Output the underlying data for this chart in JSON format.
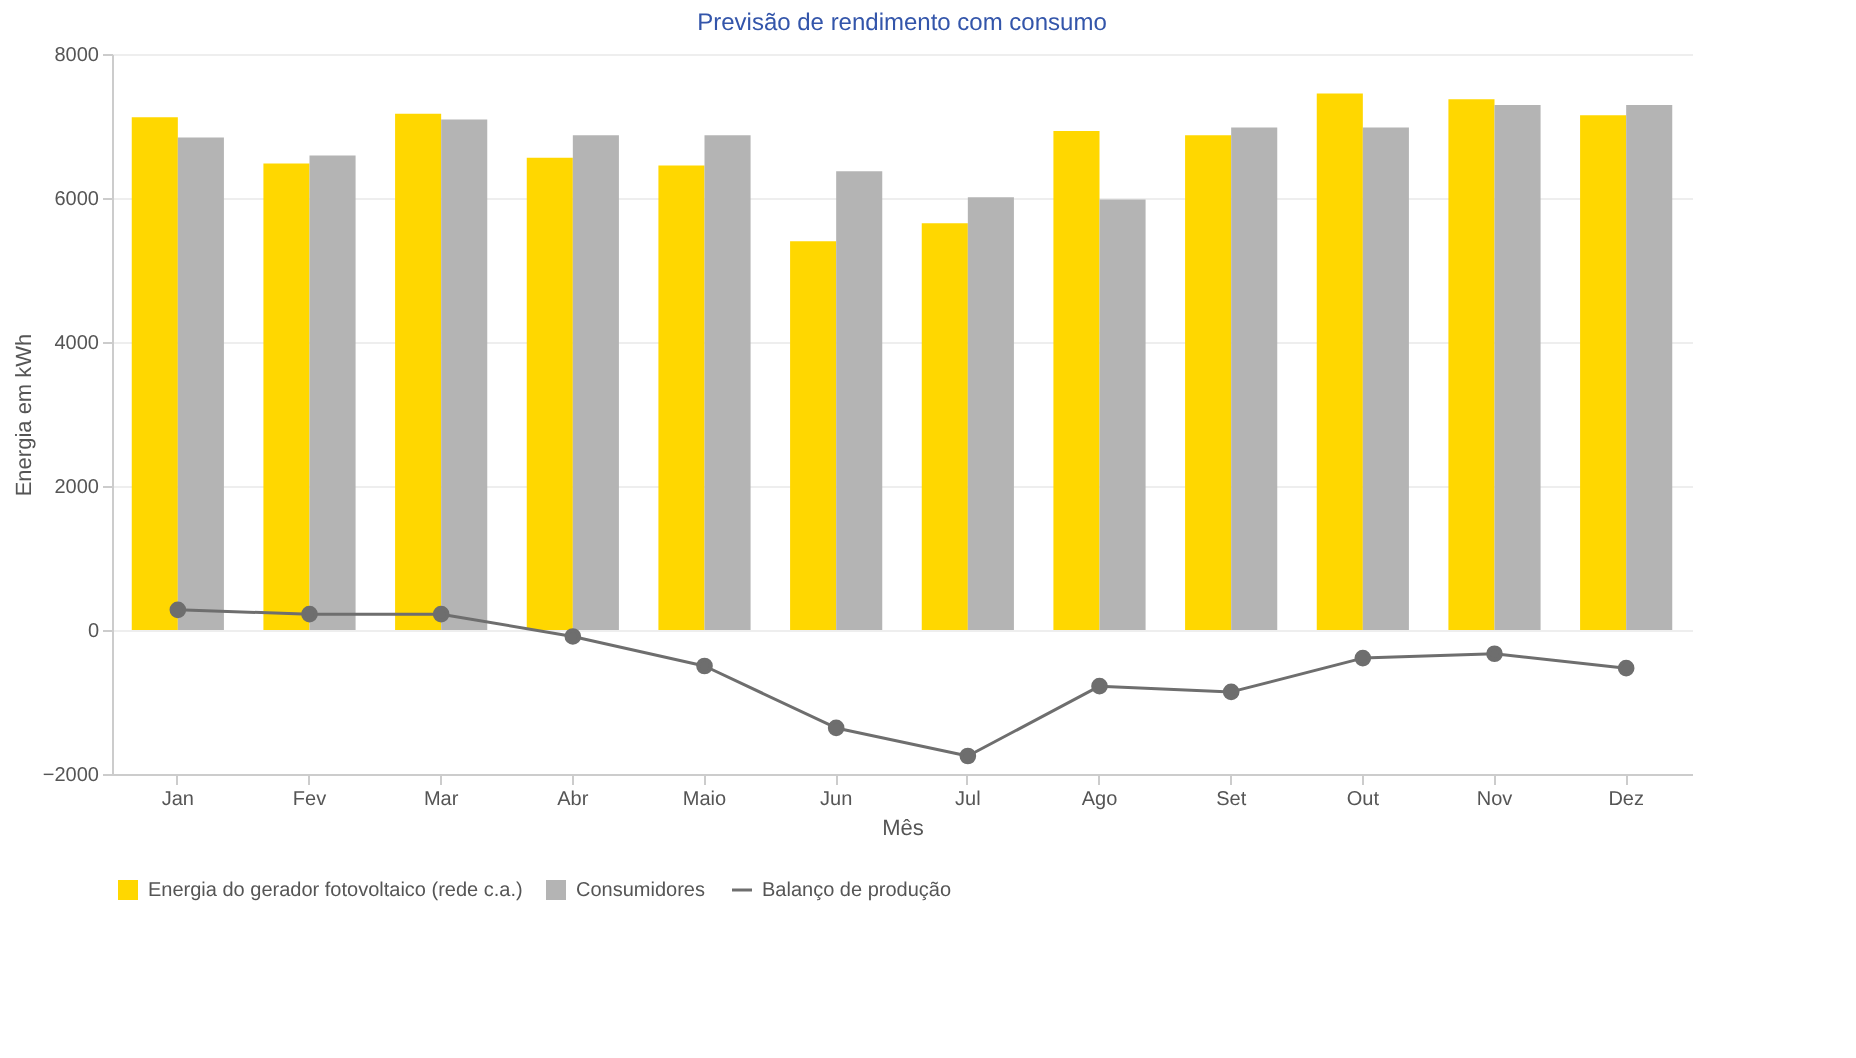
{
  "chart_data": {
    "type": "bar",
    "title": "Previsão de rendimento com consumo",
    "xlabel": "Mês",
    "ylabel": "Energia em kWh",
    "categories": [
      "Jan",
      "Fev",
      "Mar",
      "Abr",
      "Maio",
      "Jun",
      "Jul",
      "Ago",
      "Set",
      "Out",
      "Nov",
      "Dez"
    ],
    "series": [
      {
        "name": "Energia do gerador fotovoltaico (rede c.a.)",
        "color": "#ffd700",
        "values": [
          7120,
          6480,
          7170,
          6560,
          6450,
          5400,
          5650,
          6930,
          6870,
          7450,
          7370,
          7150
        ]
      },
      {
        "name": "Consumidores",
        "color": "#b4b4b4",
        "values": [
          6840,
          6590,
          7090,
          6870,
          6870,
          6370,
          6010,
          5980,
          6980,
          6980,
          7290,
          7290
        ]
      },
      {
        "name": "Balanço de produção",
        "type": "line",
        "color": "#6e6e6e",
        "marker": "circle",
        "values": [
          280,
          220,
          220,
          -90,
          -500,
          -1360,
          -1750,
          -780,
          -860,
          -390,
          -330,
          -530
        ]
      }
    ],
    "ylim": [
      -2000,
      8000
    ],
    "yticks": [
      -2000,
      0,
      2000,
      4000,
      6000,
      8000
    ],
    "grid": "y",
    "legend": "bottom left"
  }
}
